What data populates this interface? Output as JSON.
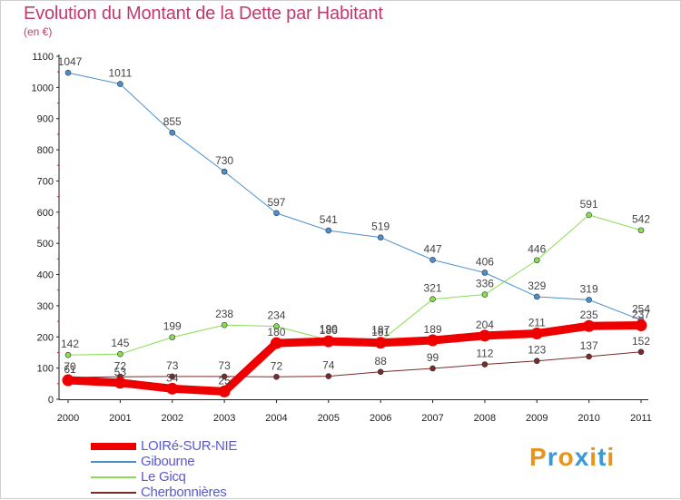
{
  "title": "Evolution du Montant de la Dette par Habitant",
  "subtitle": "(en €)",
  "logo": {
    "letters": [
      "P",
      "r",
      "o",
      "x",
      "i",
      "t",
      "i"
    ],
    "colors": [
      "#e8941a",
      "#3a9ad9",
      "#e8941a",
      "#3a9ad9",
      "#e8941a",
      "#3a9ad9",
      "#e8941a"
    ]
  },
  "chart_data": {
    "type": "line",
    "x": [
      "2000",
      "2001",
      "2002",
      "2003",
      "2004",
      "2005",
      "2006",
      "2007",
      "2008",
      "2009",
      "2010",
      "2011"
    ],
    "ylim": [
      0,
      1100
    ],
    "yticks": [
      0,
      100,
      200,
      300,
      400,
      500,
      600,
      700,
      800,
      900,
      1000,
      1100
    ],
    "grid": false,
    "legend_position": "bottom-left",
    "series": [
      {
        "name": "LOIRé-SUR-NIE",
        "color": "#ee0000",
        "width": 9,
        "values": [
          61,
          53,
          34,
          25,
          180,
          186,
          181,
          189,
          204,
          211,
          235,
          237
        ]
      },
      {
        "name": "Gibourne",
        "color": "#4a90d0",
        "width": 1,
        "values": [
          1047,
          1011,
          855,
          730,
          597,
          541,
          519,
          447,
          406,
          329,
          319,
          254
        ]
      },
      {
        "name": "Le Gicq",
        "color": "#88dd55",
        "width": 1,
        "values": [
          142,
          145,
          199,
          238,
          234,
          190,
          187,
          321,
          336,
          446,
          591,
          542
        ]
      },
      {
        "name": "Cherbonnières",
        "color": "#7a2a2a",
        "width": 1,
        "values": [
          70,
          72,
          73,
          73,
          72,
          74,
          88,
          99,
          112,
          123,
          137,
          152
        ]
      }
    ]
  }
}
